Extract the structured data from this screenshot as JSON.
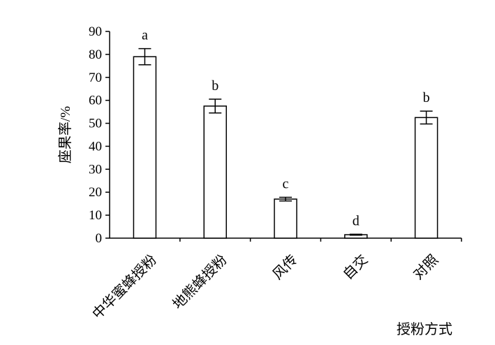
{
  "chart_data": {
    "type": "bar",
    "categories": [
      "中华蜜蜂授粉",
      "地熊蜂授粉",
      "风传",
      "自交",
      "对照"
    ],
    "values": [
      79,
      57.5,
      17,
      1.5,
      52.5
    ],
    "errors": [
      3.5,
      3.0,
      0.8,
      0.2,
      2.8
    ],
    "significance_letters": [
      "a",
      "b",
      "c",
      "d",
      "b"
    ],
    "ylabel": "座果率/%",
    "xlabel": "授粉方式",
    "ylim": [
      0,
      90
    ],
    "yticks": [
      0,
      10,
      20,
      30,
      40,
      50,
      60,
      70,
      80,
      90
    ],
    "grid": false,
    "bar_fill": "#ffffff",
    "bar_stroke": "#000000"
  }
}
